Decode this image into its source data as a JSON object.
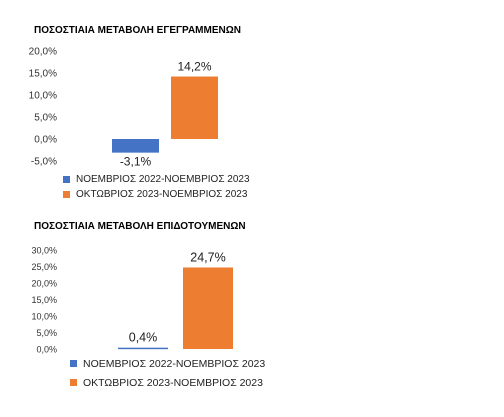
{
  "chart_data": [
    {
      "type": "bar",
      "title": "ΠΟΣΟΣΤΙΑΙΑ ΜΕΤΑΒΟΛΗ ΕΓΕΓΡΑΜΜΕΝΩΝ",
      "categories": [
        "ΝΟΕΜΒΡΙΟΣ 2022-ΝΟΕΜΒΡΙΟΣ 2023",
        "ΟΚΤΩΒΡΙΟΣ 2023-ΝΟΕΜΒΡΙΟΣ 2023"
      ],
      "values": [
        -3.1,
        14.2
      ],
      "value_labels": [
        "-3,1%",
        "14,2%"
      ],
      "colors": [
        "#4472C4",
        "#ED7D31"
      ],
      "ylim": [
        -5,
        20
      ],
      "yticks": [
        -5,
        0,
        5,
        10,
        15,
        20
      ],
      "ytick_labels": [
        "-5,0%",
        "0,0%",
        "5,0%",
        "10,0%",
        "15,0%",
        "20,0%"
      ],
      "grid": false,
      "legend_position": "bottom-left"
    },
    {
      "type": "bar",
      "title": "ΠΟΣΟΣΤΙΑΙΑ ΜΕΤΑΒΟΛΗ ΕΠΙΔΟΤΟΥΜΕΝΩΝ",
      "categories": [
        "ΝΟΕΜΒΡΙΟΣ 2022-ΝΟΕΜΒΡΙΟΣ 2023",
        "ΟΚΤΩΒΡΙΟΣ 2023-ΝΟΕΜΒΡΙΟΣ 2023"
      ],
      "values": [
        0.4,
        24.7
      ],
      "value_labels": [
        "0,4%",
        "24,7%"
      ],
      "colors": [
        "#4472C4",
        "#ED7D31"
      ],
      "ylim": [
        0,
        30
      ],
      "yticks": [
        0,
        5,
        10,
        15,
        20,
        25,
        30
      ],
      "ytick_labels": [
        "0,0%",
        "5,0%",
        "10,0%",
        "15,0%",
        "20,0%",
        "25,0%",
        "30,0%"
      ],
      "grid": false,
      "legend_position": "bottom-left"
    }
  ]
}
